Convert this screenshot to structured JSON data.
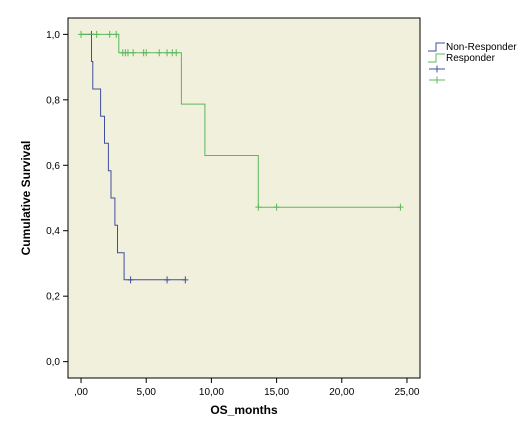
{
  "chart_data": {
    "type": "line",
    "xlabel": "OS_months",
    "ylabel": "Cumulative Survival",
    "xlim": [
      -1.0,
      26.0
    ],
    "ylim": [
      -0.05,
      1.05
    ],
    "x_ticks": [
      0,
      5,
      10,
      15,
      20,
      25
    ],
    "x_tick_labels": [
      ",00",
      "5,00",
      "10,00",
      "15,00",
      "20,00",
      "25,00"
    ],
    "y_ticks": [
      0.0,
      0.2,
      0.4,
      0.6,
      0.8,
      1.0
    ],
    "y_tick_labels": [
      "0,0",
      "0,2",
      "0,4",
      "0,6",
      "0,8",
      "1,0"
    ],
    "grid": false,
    "legend_position": "right",
    "plot_background": "#f0f0dc",
    "series": [
      {
        "name": "Non-Responder",
        "color": "#3f4fa0",
        "steps": [
          [
            0.0,
            1.0
          ],
          [
            0.8,
            0.917
          ],
          [
            0.9,
            0.833
          ],
          [
            1.5,
            0.75
          ],
          [
            1.8,
            0.667
          ],
          [
            2.1,
            0.583
          ],
          [
            2.3,
            0.5
          ],
          [
            2.6,
            0.417
          ],
          [
            2.8,
            0.333
          ],
          [
            3.3,
            0.25
          ],
          [
            8.0,
            0.25
          ]
        ],
        "censored": [
          [
            0.8,
            1.0
          ],
          [
            3.8,
            0.25
          ],
          [
            6.6,
            0.25
          ],
          [
            8.0,
            0.25
          ]
        ]
      },
      {
        "name": "Responder",
        "color": "#5cb85c",
        "steps": [
          [
            0.0,
            1.0
          ],
          [
            2.9,
            0.944
          ],
          [
            7.7,
            0.787
          ],
          [
            9.5,
            0.63
          ],
          [
            13.6,
            0.472
          ],
          [
            24.5,
            0.472
          ]
        ],
        "censored": [
          [
            0.0,
            1.0
          ],
          [
            1.2,
            1.0
          ],
          [
            2.2,
            1.0
          ],
          [
            2.7,
            1.0
          ],
          [
            3.2,
            0.944
          ],
          [
            3.4,
            0.944
          ],
          [
            3.6,
            0.944
          ],
          [
            4.0,
            0.944
          ],
          [
            4.8,
            0.944
          ],
          [
            5.0,
            0.944
          ],
          [
            6.0,
            0.944
          ],
          [
            6.6,
            0.944
          ],
          [
            7.0,
            0.944
          ],
          [
            7.3,
            0.944
          ],
          [
            13.6,
            0.472
          ],
          [
            15.0,
            0.472
          ],
          [
            24.5,
            0.472
          ]
        ]
      }
    ],
    "legend_entries": [
      {
        "label": "Non-Responder",
        "marker": "step",
        "color": "#3f4fa0"
      },
      {
        "label": "Responder",
        "marker": "step",
        "color": "#5cb85c"
      },
      {
        "label": "",
        "marker": "plus",
        "color": "#3f4fa0"
      },
      {
        "label": "",
        "marker": "plus",
        "color": "#5cb85c"
      }
    ]
  }
}
